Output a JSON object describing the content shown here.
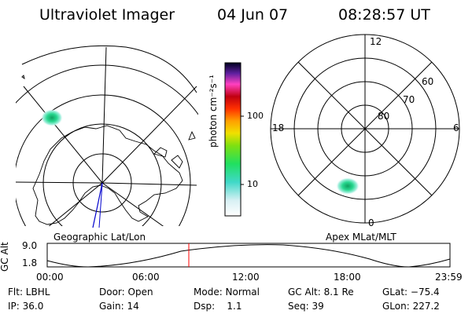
{
  "header": {
    "instrument": "Ultraviolet Imager",
    "date": "04 Jun 07",
    "time": "08:28:57 UT"
  },
  "left_map": {
    "caption": "Geographic Lat/Lon"
  },
  "colorbar": {
    "label": "photon cm⁻²s⁻¹",
    "ticks": [
      "100",
      "10"
    ],
    "scale": "log"
  },
  "right_map": {
    "caption": "Apex MLat/MLT",
    "mlt_labels": [
      "12",
      "18",
      "6",
      "0"
    ],
    "mlat_labels": [
      "60",
      "70",
      "80"
    ]
  },
  "altitude_plot": {
    "ylabel": "GC Alt",
    "y_ticks": [
      "9.0",
      "1.8"
    ],
    "x_ticks": [
      "00:00",
      "06:00",
      "12:00",
      "18:00",
      "23:59"
    ],
    "current_time_marker": "08:28:57"
  },
  "status": {
    "row1": [
      {
        "text": "Flt: LBHL"
      },
      {
        "text": "Door: Open"
      },
      {
        "text": "Mode: Normal"
      },
      {
        "text": "GC Alt: 8.1 Re"
      },
      {
        "text": "GLat: −75.4"
      }
    ],
    "row2": [
      {
        "text": "IP: 36.0"
      },
      {
        "text": "Gain: 14"
      },
      {
        "text": "Dsp:    1.1"
      },
      {
        "text": "Seq: 39"
      },
      {
        "text": "GLon: 227.2"
      }
    ]
  },
  "colors": {
    "marker": "#ff0000",
    "track": "#0000cc",
    "aurora": "#22cc88"
  }
}
